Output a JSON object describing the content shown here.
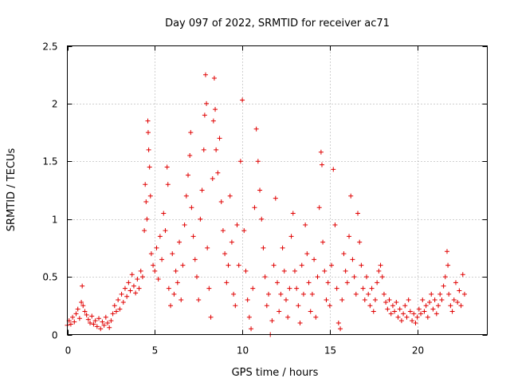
{
  "chart_data": {
    "type": "scatter",
    "title": "Day 097 of 2022, SRMTID for receiver ac71",
    "xlabel": "GPS time / hours",
    "ylabel": "SRMTID / TECUs",
    "xlim": [
      0,
      24
    ],
    "ylim": [
      0,
      2.5
    ],
    "xticks": [
      0,
      5,
      10,
      15,
      20
    ],
    "yticks": [
      0,
      0.5,
      1,
      1.5,
      2,
      2.5
    ],
    "xtick_labels": [
      "0",
      "5",
      "10",
      "15",
      "20"
    ],
    "ytick_labels": [
      "0",
      "0.5",
      "1",
      "1.5",
      "2",
      "2.5"
    ],
    "grid": true,
    "marker": "+",
    "color": "#e00000",
    "series": [
      {
        "name": "SRMTID",
        "points": [
          [
            0.0,
            0.08
          ],
          [
            0.1,
            0.12
          ],
          [
            0.2,
            0.09
          ],
          [
            0.3,
            0.15
          ],
          [
            0.4,
            0.11
          ],
          [
            0.5,
            0.18
          ],
          [
            0.6,
            0.22
          ],
          [
            0.7,
            0.14
          ],
          [
            0.8,
            0.28
          ],
          [
            0.85,
            0.42
          ],
          [
            0.9,
            0.25
          ],
          [
            1.0,
            0.2
          ],
          [
            1.1,
            0.17
          ],
          [
            1.2,
            0.13
          ],
          [
            1.3,
            0.1
          ],
          [
            1.4,
            0.16
          ],
          [
            1.5,
            0.09
          ],
          [
            1.6,
            0.12
          ],
          [
            1.7,
            0.07
          ],
          [
            1.8,
            0.14
          ],
          [
            1.9,
            0.05
          ],
          [
            2.0,
            0.11
          ],
          [
            2.1,
            0.08
          ],
          [
            2.2,
            0.15
          ],
          [
            2.3,
            0.1
          ],
          [
            2.4,
            0.06
          ],
          [
            2.5,
            0.12
          ],
          [
            2.6,
            0.18
          ],
          [
            2.7,
            0.25
          ],
          [
            2.8,
            0.2
          ],
          [
            2.9,
            0.3
          ],
          [
            3.0,
            0.22
          ],
          [
            3.1,
            0.35
          ],
          [
            3.2,
            0.28
          ],
          [
            3.3,
            0.4
          ],
          [
            3.4,
            0.33
          ],
          [
            3.5,
            0.45
          ],
          [
            3.6,
            0.38
          ],
          [
            3.7,
            0.52
          ],
          [
            3.8,
            0.42
          ],
          [
            3.9,
            0.36
          ],
          [
            4.0,
            0.48
          ],
          [
            4.1,
            0.4
          ],
          [
            4.2,
            0.55
          ],
          [
            4.3,
            0.5
          ],
          [
            4.4,
            0.9
          ],
          [
            4.45,
            1.3
          ],
          [
            4.5,
            1.15
          ],
          [
            4.55,
            1.0
          ],
          [
            4.6,
            1.85
          ],
          [
            4.62,
            1.75
          ],
          [
            4.65,
            1.6
          ],
          [
            4.7,
            1.45
          ],
          [
            4.75,
            1.2
          ],
          [
            4.8,
            0.7
          ],
          [
            4.9,
            0.6
          ],
          [
            5.0,
            0.55
          ],
          [
            5.1,
            0.75
          ],
          [
            5.2,
            0.48
          ],
          [
            5.3,
            0.85
          ],
          [
            5.4,
            0.65
          ],
          [
            5.5,
            1.05
          ],
          [
            5.6,
            0.9
          ],
          [
            5.7,
            1.45
          ],
          [
            5.75,
            1.3
          ],
          [
            5.8,
            0.4
          ],
          [
            5.9,
            0.25
          ],
          [
            6.0,
            0.7
          ],
          [
            6.1,
            0.35
          ],
          [
            6.2,
            0.55
          ],
          [
            6.3,
            0.45
          ],
          [
            6.4,
            0.8
          ],
          [
            6.5,
            0.3
          ],
          [
            6.6,
            0.6
          ],
          [
            6.7,
            0.95
          ],
          [
            6.8,
            1.2
          ],
          [
            6.9,
            1.38
          ],
          [
            7.0,
            1.55
          ],
          [
            7.05,
            1.75
          ],
          [
            7.1,
            1.1
          ],
          [
            7.2,
            0.85
          ],
          [
            7.3,
            0.65
          ],
          [
            7.4,
            0.5
          ],
          [
            7.5,
            0.3
          ],
          [
            7.6,
            1.0
          ],
          [
            7.7,
            1.25
          ],
          [
            7.8,
            1.6
          ],
          [
            7.85,
            1.9
          ],
          [
            7.9,
            2.25
          ],
          [
            7.95,
            2.0
          ],
          [
            8.0,
            0.75
          ],
          [
            8.1,
            0.4
          ],
          [
            8.2,
            0.15
          ],
          [
            8.3,
            1.35
          ],
          [
            8.35,
            1.85
          ],
          [
            8.4,
            2.22
          ],
          [
            8.45,
            1.95
          ],
          [
            8.5,
            1.6
          ],
          [
            8.6,
            1.4
          ],
          [
            8.7,
            1.7
          ],
          [
            8.8,
            1.15
          ],
          [
            8.9,
            0.9
          ],
          [
            9.0,
            0.7
          ],
          [
            9.1,
            0.45
          ],
          [
            9.2,
            0.6
          ],
          [
            9.3,
            1.2
          ],
          [
            9.4,
            0.8
          ],
          [
            9.5,
            0.35
          ],
          [
            9.6,
            0.25
          ],
          [
            9.7,
            0.95
          ],
          [
            9.8,
            0.6
          ],
          [
            9.9,
            1.5
          ],
          [
            10.0,
            2.03
          ],
          [
            10.1,
            0.9
          ],
          [
            10.2,
            0.55
          ],
          [
            10.3,
            0.3
          ],
          [
            10.4,
            0.15
          ],
          [
            10.5,
            0.05
          ],
          [
            10.6,
            0.4
          ],
          [
            10.7,
            1.1
          ],
          [
            10.8,
            1.78
          ],
          [
            10.9,
            1.5
          ],
          [
            11.0,
            1.25
          ],
          [
            11.1,
            1.0
          ],
          [
            11.2,
            0.75
          ],
          [
            11.3,
            0.5
          ],
          [
            11.4,
            0.25
          ],
          [
            11.5,
            0.35
          ],
          [
            11.6,
            0.0
          ],
          [
            11.7,
            0.12
          ],
          [
            11.8,
            0.6
          ],
          [
            11.9,
            1.18
          ],
          [
            12.0,
            0.45
          ],
          [
            12.1,
            0.2
          ],
          [
            12.2,
            0.35
          ],
          [
            12.3,
            0.75
          ],
          [
            12.4,
            0.55
          ],
          [
            12.5,
            0.3
          ],
          [
            12.6,
            0.15
          ],
          [
            12.7,
            0.4
          ],
          [
            12.8,
            0.85
          ],
          [
            12.9,
            1.05
          ],
          [
            13.0,
            0.55
          ],
          [
            13.1,
            0.4
          ],
          [
            13.2,
            0.25
          ],
          [
            13.3,
            0.1
          ],
          [
            13.4,
            0.6
          ],
          [
            13.5,
            0.35
          ],
          [
            13.6,
            0.95
          ],
          [
            13.7,
            0.7
          ],
          [
            13.8,
            0.45
          ],
          [
            13.9,
            0.2
          ],
          [
            14.0,
            0.35
          ],
          [
            14.1,
            0.65
          ],
          [
            14.2,
            0.15
          ],
          [
            14.3,
            0.5
          ],
          [
            14.4,
            1.1
          ],
          [
            14.5,
            1.58
          ],
          [
            14.55,
            1.47
          ],
          [
            14.6,
            0.8
          ],
          [
            14.7,
            0.55
          ],
          [
            14.8,
            0.3
          ],
          [
            14.9,
            0.45
          ],
          [
            15.0,
            0.25
          ],
          [
            15.1,
            0.6
          ],
          [
            15.2,
            1.43
          ],
          [
            15.3,
            0.95
          ],
          [
            15.4,
            0.4
          ],
          [
            15.5,
            0.1
          ],
          [
            15.6,
            0.05
          ],
          [
            15.7,
            0.3
          ],
          [
            15.8,
            0.7
          ],
          [
            15.9,
            0.55
          ],
          [
            16.0,
            0.45
          ],
          [
            16.1,
            0.85
          ],
          [
            16.2,
            1.2
          ],
          [
            16.3,
            0.65
          ],
          [
            16.4,
            0.5
          ],
          [
            16.5,
            0.35
          ],
          [
            16.6,
            1.05
          ],
          [
            16.7,
            0.8
          ],
          [
            16.8,
            0.6
          ],
          [
            16.9,
            0.4
          ],
          [
            17.0,
            0.3
          ],
          [
            17.1,
            0.5
          ],
          [
            17.2,
            0.35
          ],
          [
            17.3,
            0.25
          ],
          [
            17.4,
            0.4
          ],
          [
            17.5,
            0.2
          ],
          [
            17.6,
            0.3
          ],
          [
            17.7,
            0.45
          ],
          [
            17.8,
            0.55
          ],
          [
            17.9,
            0.6
          ],
          [
            18.0,
            0.5
          ],
          [
            18.1,
            0.35
          ],
          [
            18.2,
            0.28
          ],
          [
            18.3,
            0.22
          ],
          [
            18.4,
            0.3
          ],
          [
            18.5,
            0.18
          ],
          [
            18.6,
            0.25
          ],
          [
            18.7,
            0.2
          ],
          [
            18.8,
            0.28
          ],
          [
            18.9,
            0.15
          ],
          [
            19.0,
            0.22
          ],
          [
            19.1,
            0.12
          ],
          [
            19.2,
            0.18
          ],
          [
            19.3,
            0.25
          ],
          [
            19.4,
            0.15
          ],
          [
            19.5,
            0.3
          ],
          [
            19.6,
            0.2
          ],
          [
            19.7,
            0.12
          ],
          [
            19.8,
            0.18
          ],
          [
            19.9,
            0.1
          ],
          [
            20.0,
            0.15
          ],
          [
            20.1,
            0.22
          ],
          [
            20.2,
            0.18
          ],
          [
            20.3,
            0.3
          ],
          [
            20.4,
            0.2
          ],
          [
            20.5,
            0.25
          ],
          [
            20.6,
            0.15
          ],
          [
            20.7,
            0.28
          ],
          [
            20.8,
            0.35
          ],
          [
            20.9,
            0.22
          ],
          [
            21.0,
            0.3
          ],
          [
            21.1,
            0.18
          ],
          [
            21.2,
            0.25
          ],
          [
            21.3,
            0.35
          ],
          [
            21.4,
            0.3
          ],
          [
            21.5,
            0.42
          ],
          [
            21.6,
            0.5
          ],
          [
            21.7,
            0.72
          ],
          [
            21.75,
            0.6
          ],
          [
            21.8,
            0.35
          ],
          [
            21.9,
            0.25
          ],
          [
            22.0,
            0.2
          ],
          [
            22.1,
            0.3
          ],
          [
            22.2,
            0.45
          ],
          [
            22.3,
            0.28
          ],
          [
            22.4,
            0.38
          ],
          [
            22.5,
            0.25
          ],
          [
            22.6,
            0.52
          ],
          [
            22.7,
            0.35
          ]
        ]
      }
    ]
  }
}
